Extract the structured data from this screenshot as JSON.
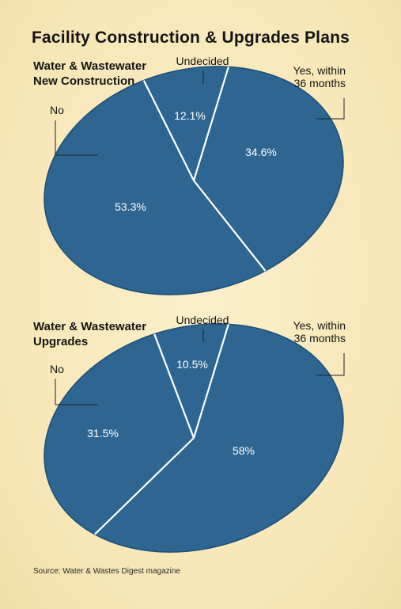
{
  "title": "Facility Construction & Upgrades Plans",
  "source": "Source: Water & Wastes Digest magazine",
  "colors": {
    "pie_fill": "#2e6591",
    "pie_stroke": "#ffffff",
    "label_text": "#ffffff",
    "leader": "#222222",
    "background": "#f7e9bd"
  },
  "chart_data": [
    {
      "type": "pie",
      "title_lines": [
        "Water & Wastewater",
        "New Construction"
      ],
      "slices": [
        {
          "label": "Yes, within 36 months",
          "label_lines": [
            "Yes, within",
            "36 months"
          ],
          "value": 34.6,
          "value_label": "34.6%"
        },
        {
          "label": "No",
          "label_lines": [
            "No"
          ],
          "value": 53.3,
          "value_label": "53.3%"
        },
        {
          "label": "Undecided",
          "label_lines": [
            "Undecided"
          ],
          "value": 12.1,
          "value_label": "12.1%"
        }
      ]
    },
    {
      "type": "pie",
      "title_lines": [
        "Water & Wastewater",
        "Upgrades"
      ],
      "slices": [
        {
          "label": "Yes, within 36 months",
          "label_lines": [
            "Yes, within",
            "36 months"
          ],
          "value": 58,
          "value_label": "58%"
        },
        {
          "label": "No",
          "label_lines": [
            "No"
          ],
          "value": 31.5,
          "value_label": "31.5%"
        },
        {
          "label": "Undecided",
          "label_lines": [
            "Undecided"
          ],
          "value": 10.5,
          "value_label": "10.5%"
        }
      ]
    }
  ]
}
